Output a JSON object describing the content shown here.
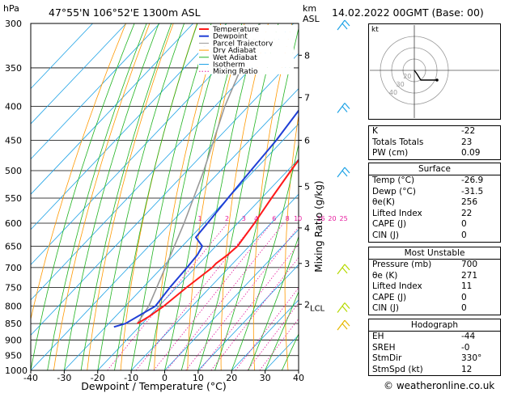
{
  "header": {
    "hpa_label": "hPa",
    "location": "47°55'N  106°52'E  1300m  ASL",
    "km_label": "km",
    "asl_label": "ASL",
    "datetime": "14.02.2022  00GMT  (Base: 00)"
  },
  "chart_data": {
    "type": "skew-t",
    "xlabel": "Dewpoint / Temperature (°C)",
    "ylabel_right": "Mixing Ratio (g/kg)",
    "pressure_ticks": [
      300,
      350,
      400,
      450,
      500,
      550,
      600,
      650,
      700,
      750,
      800,
      850,
      900,
      950,
      1000
    ],
    "temp_ticks": [
      -40,
      -30,
      -20,
      -10,
      0,
      10,
      20,
      30,
      40
    ],
    "xlim": [
      -40,
      40
    ],
    "ylim": [
      1000,
      300
    ],
    "km_ticks": [
      {
        "km": "8",
        "p": 335
      },
      {
        "km": "7",
        "p": 388
      },
      {
        "km": "6",
        "p": 450
      },
      {
        "km": "5",
        "p": 528
      },
      {
        "km": "4",
        "p": 610
      },
      {
        "km": "3",
        "p": 690
      },
      {
        "km": "2",
        "p": 795
      }
    ],
    "lcl_label": "LCL",
    "lcl_p": 800,
    "mixing_ratio_labels": [
      "1",
      "2",
      "3",
      "4",
      "6",
      "8",
      "10",
      "16",
      "20",
      "25"
    ],
    "mixing_ratio_values": [
      1,
      2,
      3,
      4,
      6,
      8,
      10,
      16,
      20,
      25
    ],
    "legend": [
      "Temperature",
      "Dewpoint",
      "Parcel Trajectory",
      "Dry Adiabat",
      "Wet Adiabat",
      "Isotherm",
      "Mixing Ratio"
    ],
    "temperature_profile": [
      [
        850,
        -21.5
      ],
      [
        830,
        -20
      ],
      [
        800,
        -18.5
      ],
      [
        750,
        -17
      ],
      [
        700,
        -15
      ],
      [
        690,
        -15
      ],
      [
        670,
        -14
      ],
      [
        650,
        -13.5
      ],
      [
        600,
        -15
      ],
      [
        550,
        -17
      ],
      [
        500,
        -19
      ],
      [
        450,
        -21
      ],
      [
        400,
        -23.5
      ],
      [
        350,
        -25.5
      ],
      [
        300,
        -27
      ]
    ],
    "dewpoint_profile": [
      [
        860,
        -27.5
      ],
      [
        850,
        -25
      ],
      [
        800,
        -21
      ],
      [
        750,
        -22
      ],
      [
        700,
        -22.5
      ],
      [
        670,
        -23
      ],
      [
        650,
        -24
      ],
      [
        630,
        -28.5
      ],
      [
        600,
        -29
      ],
      [
        550,
        -30
      ],
      [
        500,
        -31
      ],
      [
        450,
        -32
      ],
      [
        400,
        -34
      ],
      [
        350,
        -35.5
      ],
      [
        300,
        -37
      ]
    ],
    "parcel_profile": [
      [
        850,
        -21.5
      ],
      [
        800,
        -23
      ],
      [
        700,
        -29
      ],
      [
        600,
        -36
      ],
      [
        500,
        -45
      ],
      [
        400,
        -57
      ],
      [
        300,
        -70
      ]
    ]
  },
  "colors": {
    "temperature": "#ff1a1a",
    "dewpoint": "#1f3fd6",
    "parcel": "#999999",
    "dry_adiabat": "#ff9900",
    "wet_adiabat": "#1fb31f",
    "isotherm": "#1fa3e6",
    "mixing_ratio": "#e61a9e"
  },
  "indices": {
    "K": "-22",
    "Totals Totals": "23",
    "PW (cm)": "0.09"
  },
  "surface": {
    "title": "Surface",
    "rows": [
      {
        "label": "Temp (°C)",
        "value": "-26.9"
      },
      {
        "label": "Dewp (°C)",
        "value": "-31.5"
      },
      {
        "label": "θe(K)",
        "value": "256"
      },
      {
        "label": "Lifted Index",
        "value": "22"
      },
      {
        "label": "CAPE (J)",
        "value": "0"
      },
      {
        "label": "CIN (J)",
        "value": "0"
      }
    ]
  },
  "most_unstable": {
    "title": "Most Unstable",
    "rows": [
      {
        "label": "Pressure (mb)",
        "value": "700"
      },
      {
        "label": "θe (K)",
        "value": "271"
      },
      {
        "label": "Lifted Index",
        "value": "11"
      },
      {
        "label": "CAPE (J)",
        "value": "0"
      },
      {
        "label": "CIN (J)",
        "value": "0"
      }
    ]
  },
  "hodograph": {
    "title": "Hodograph",
    "kt_label": "kt",
    "ring_labels": [
      "40",
      "30",
      "20"
    ],
    "rows": [
      {
        "label": "EH",
        "value": "-44"
      },
      {
        "label": "SREH",
        "value": "-0"
      },
      {
        "label": "StmDir",
        "value": "330°"
      },
      {
        "label": "StmSpd (kt)",
        "value": "12"
      }
    ]
  },
  "copyright": "© weatheronline.co.uk"
}
